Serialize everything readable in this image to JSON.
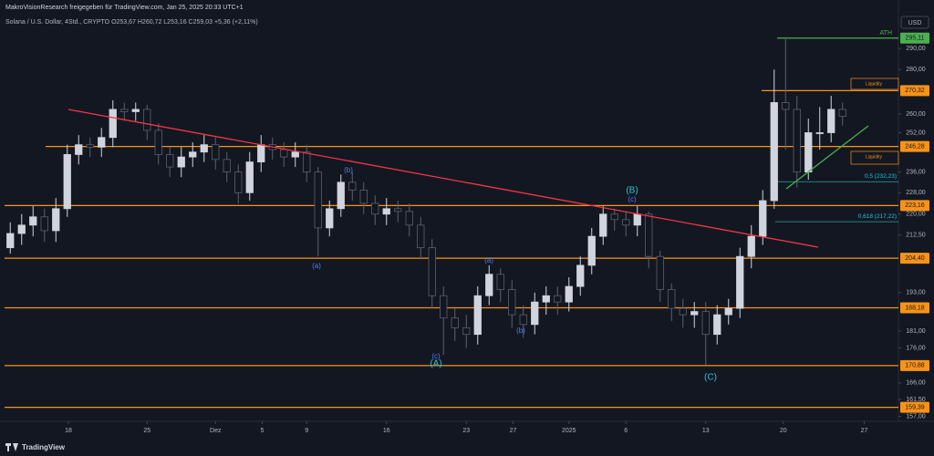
{
  "header": {
    "shared_by": "MakroVisionResearch freigegeben für TradingView.com, Jan 25, 2025 20:33 UTC+1",
    "logo": "TradingView"
  },
  "chart_data": {
    "type": "candlestick",
    "legend": "Solana / U.S. Dollar, 4Std., CRYPTO O253,67 H260,72 L253,16 C259,03 +5,36 (+2,11%)",
    "currency": "USD",
    "log_scale": true,
    "grid": false,
    "up_color": "#d1d4dc",
    "down_color": "#5d606b",
    "xlim": [
      0,
      78.4
    ],
    "ylim": [
      155.7,
      309.7
    ],
    "xticks": [
      {
        "value": 5.6,
        "label": "18"
      },
      {
        "value": 12.5,
        "label": "25"
      },
      {
        "value": 18.5,
        "label": "Dez"
      },
      {
        "value": 22.6,
        "label": "5"
      },
      {
        "value": 26.5,
        "label": "9"
      },
      {
        "value": 33.5,
        "label": "16"
      },
      {
        "value": 40.5,
        "label": "23"
      },
      {
        "value": 44.6,
        "label": "27"
      },
      {
        "value": 49.5,
        "label": "2025"
      },
      {
        "value": 54.5,
        "label": "6"
      },
      {
        "value": 61.5,
        "label": "13"
      },
      {
        "value": 68.3,
        "label": "20"
      },
      {
        "value": 75.4,
        "label": "27"
      }
    ],
    "yticks": [
      {
        "value": 290,
        "label": "290,00"
      },
      {
        "value": 280,
        "label": "280,00"
      },
      {
        "value": 260,
        "label": "260,00"
      },
      {
        "value": 252,
        "label": "252,00"
      },
      {
        "value": 236,
        "label": "236,00"
      },
      {
        "value": 228,
        "label": "228,00"
      },
      {
        "value": 220,
        "label": "220,00"
      },
      {
        "value": 212.5,
        "label": "212,50"
      },
      {
        "value": 193,
        "label": "193,00"
      },
      {
        "value": 181,
        "label": "181,00"
      },
      {
        "value": 176,
        "label": "176,00"
      },
      {
        "value": 166,
        "label": "166,00"
      },
      {
        "value": 161.5,
        "label": "161,50"
      },
      {
        "value": 157,
        "label": "157,00"
      }
    ],
    "open": [
      208,
      213,
      216,
      219,
      214,
      222,
      243,
      247,
      246,
      250,
      262,
      261,
      262,
      253,
      243,
      238,
      242,
      244,
      247,
      241,
      236,
      228,
      240,
      247,
      245,
      242,
      244,
      236,
      215,
      222,
      232,
      229,
      224,
      220,
      222,
      221,
      216,
      208,
      192,
      185,
      182,
      180,
      192,
      199,
      194,
      186,
      183,
      190,
      192,
      190,
      195,
      202,
      212,
      220,
      218,
      216,
      220,
      205,
      194,
      188,
      186,
      187,
      180,
      186,
      188,
      205,
      212,
      225,
      265,
      262,
      236,
      252,
      252,
      262
    ],
    "high": [
      217,
      220,
      223,
      222,
      226,
      247,
      251,
      250,
      254,
      266,
      265,
      265,
      264,
      256,
      246,
      246,
      248,
      251,
      250,
      244,
      239,
      244,
      251,
      250,
      248,
      248,
      247,
      238,
      225,
      235,
      236,
      232,
      227,
      226,
      225,
      224,
      219,
      211,
      195,
      188,
      186,
      195,
      202,
      201,
      197,
      189,
      193,
      195,
      195,
      198,
      205,
      215,
      223,
      222,
      221,
      223,
      221,
      207,
      196,
      191,
      190,
      190,
      189,
      191,
      208,
      216,
      229,
      280,
      295,
      268,
      258,
      263,
      268,
      265
    ],
    "low": [
      206,
      209,
      212,
      210,
      210,
      219,
      239,
      242,
      242,
      246,
      257,
      257,
      249,
      239,
      234,
      234,
      238,
      240,
      237,
      232,
      224,
      225,
      236,
      241,
      238,
      238,
      232,
      205,
      212,
      219,
      225,
      220,
      216,
      216,
      217,
      212,
      204,
      188,
      174,
      178,
      176,
      177,
      189,
      190,
      182,
      179,
      180,
      186,
      186,
      187,
      192,
      199,
      209,
      214,
      212,
      212,
      201,
      190,
      184,
      182,
      182,
      171,
      177,
      183,
      185,
      201,
      209,
      222,
      245,
      230,
      233,
      245,
      248,
      255
    ],
    "close": [
      213,
      216,
      219,
      214,
      222,
      243,
      247,
      246,
      250,
      262,
      261,
      262,
      253,
      243,
      238,
      242,
      244,
      247,
      241,
      236,
      228,
      240,
      247,
      245,
      242,
      244,
      236,
      215,
      222,
      232,
      229,
      224,
      220,
      222,
      221,
      216,
      208,
      192,
      185,
      182,
      180,
      192,
      199,
      194,
      186,
      183,
      190,
      192,
      190,
      195,
      202,
      212,
      220,
      218,
      216,
      220,
      205,
      194,
      188,
      186,
      187,
      180,
      186,
      188,
      205,
      212,
      225,
      265,
      262,
      236,
      252,
      252,
      262,
      259
    ],
    "levels": [
      {
        "value": 295.11,
        "label": "295,11",
        "color": "#4caf50"
      },
      {
        "value": 270.32,
        "label": "270,32",
        "color": "#f7931a"
      },
      {
        "value": 246.28,
        "label": "246,28",
        "color": "#f7931a"
      },
      {
        "value": 223.16,
        "label": "223,16",
        "color": "#f7931a"
      },
      {
        "value": 204.4,
        "label": "204,40",
        "color": "#f7931a"
      },
      {
        "value": 188.18,
        "label": "188,18",
        "color": "#f7931a"
      },
      {
        "value": 170.88,
        "label": "170,88",
        "color": "#f7931a"
      },
      {
        "value": 159.39,
        "label": "159,39",
        "color": "#f7931a"
      }
    ],
    "fib": [
      {
        "value": 232.23,
        "label": "0,5 (232,23)"
      },
      {
        "value": 217.22,
        "label": "0,618 (217,22)"
      }
    ],
    "annotations": {
      "ath": "ATH",
      "liquidity_top": "Liquidity",
      "liquidity_bottom": "Liquidity"
    },
    "waves": [
      "(a)",
      "(b)",
      "(c)",
      "(A)",
      "(a)",
      "(b)",
      "(B)",
      "(c)",
      "(C)"
    ]
  }
}
